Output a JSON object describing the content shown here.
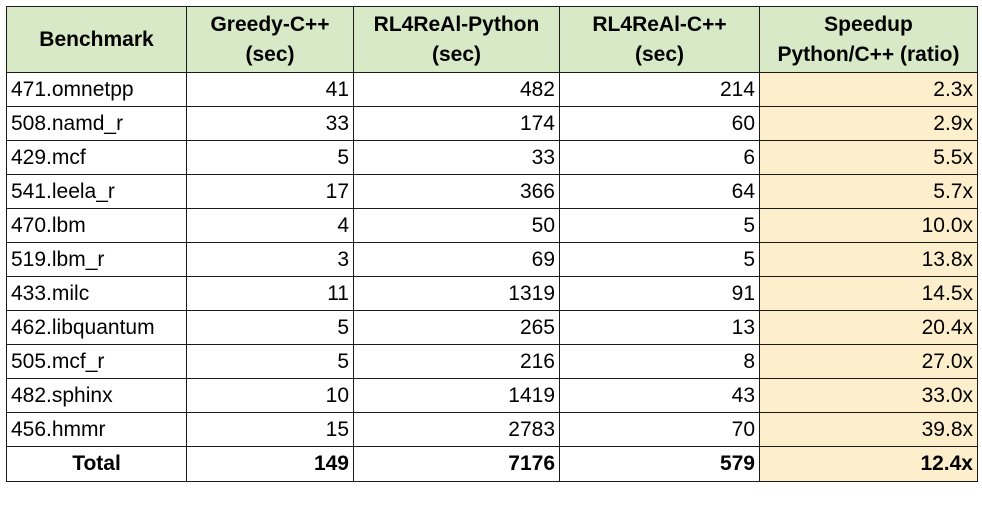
{
  "columns": [
    {
      "line1": "Benchmark",
      "line2": ""
    },
    {
      "line1": "Greedy-C++",
      "line2": "(sec)"
    },
    {
      "line1": "RL4ReAl-Python",
      "line2": "(sec)"
    },
    {
      "line1": "RL4ReAl-C++",
      "line2": "(sec)"
    },
    {
      "line1": "Speedup",
      "line2": "Python/C++ (ratio)"
    }
  ],
  "rows": [
    [
      "471.omnetpp",
      "41",
      "482",
      "214",
      "2.3x"
    ],
    [
      "508.namd_r",
      "33",
      "174",
      "60",
      "2.9x"
    ],
    [
      "429.mcf",
      "5",
      "33",
      "6",
      "5.5x"
    ],
    [
      "541.leela_r",
      "17",
      "366",
      "64",
      "5.7x"
    ],
    [
      "470.lbm",
      "4",
      "50",
      "5",
      "10.0x"
    ],
    [
      "519.lbm_r",
      "3",
      "69",
      "5",
      "13.8x"
    ],
    [
      "433.milc",
      "11",
      "1319",
      "91",
      "14.5x"
    ],
    [
      "462.libquantum",
      "5",
      "265",
      "13",
      "20.4x"
    ],
    [
      "505.mcf_r",
      "5",
      "216",
      "8",
      "27.0x"
    ],
    [
      "482.sphinx",
      "10",
      "1419",
      "43",
      "33.0x"
    ],
    [
      "456.hmmr",
      "15",
      "2783",
      "70",
      "39.8x"
    ]
  ],
  "total": [
    "Total",
    "149",
    "7176",
    "579",
    "12.4x"
  ],
  "colors": {
    "header_bg": "#d7e9c6",
    "speedup_bg": "#fdefcb",
    "border": "#1a1a1a"
  }
}
